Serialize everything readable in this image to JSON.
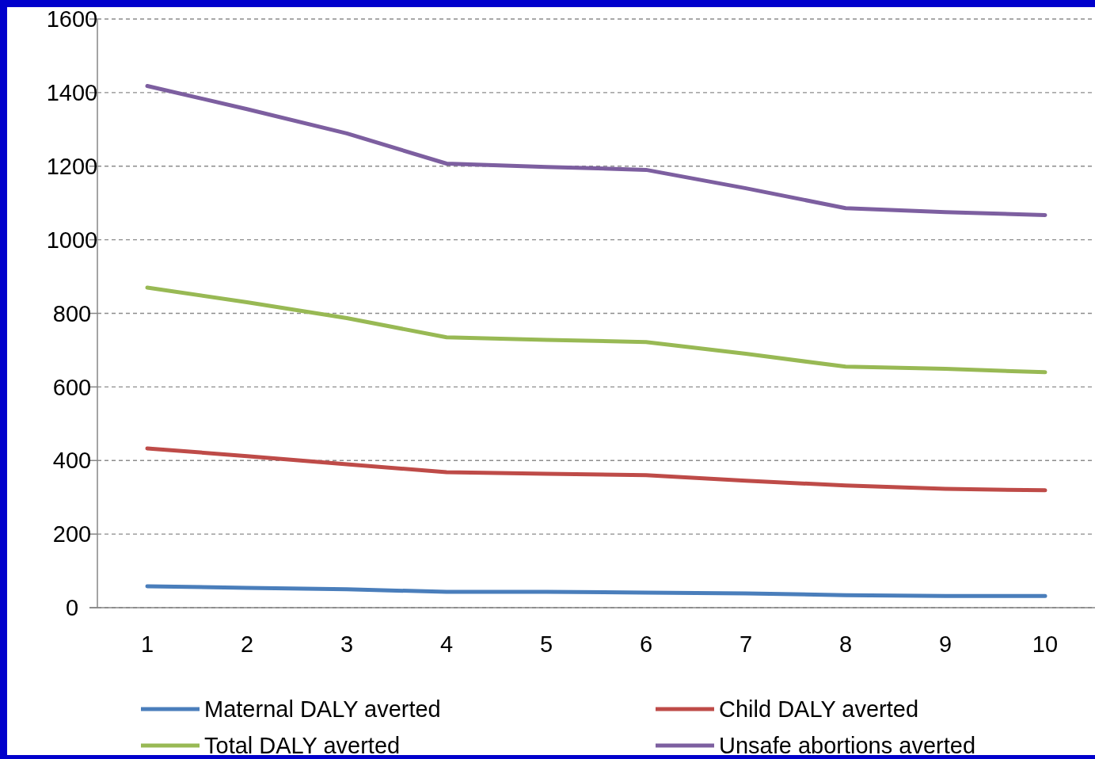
{
  "chart_data": {
    "type": "line",
    "categories": [
      "1",
      "2",
      "3",
      "4",
      "5",
      "6",
      "7",
      "8",
      "9",
      "10"
    ],
    "series": [
      {
        "name": "Maternal DALY averted",
        "color": "#4a7ebb",
        "values": [
          58,
          54,
          50,
          43,
          43,
          41,
          39,
          34,
          32,
          32
        ]
      },
      {
        "name": "Child DALY averted",
        "color": "#be4b48",
        "values": [
          433,
          412,
          390,
          368,
          364,
          360,
          345,
          332,
          323,
          319
        ]
      },
      {
        "name": "Total DALY averted",
        "color": "#98b954",
        "values": [
          870,
          830,
          787,
          735,
          728,
          722,
          690,
          655,
          649,
          640
        ]
      },
      {
        "name": "Unsafe abortions averted",
        "color": "#7d5fa0",
        "values": [
          1418,
          1355,
          1289,
          1207,
          1198,
          1190,
          1140,
          1086,
          1075,
          1067
        ]
      }
    ],
    "ylim": [
      0,
      1600
    ],
    "yticks": [
      0,
      200,
      400,
      600,
      800,
      1000,
      1200,
      1400,
      1600
    ],
    "grid": "y",
    "legend": "bottom",
    "marker": "none",
    "line_style": "solid"
  }
}
